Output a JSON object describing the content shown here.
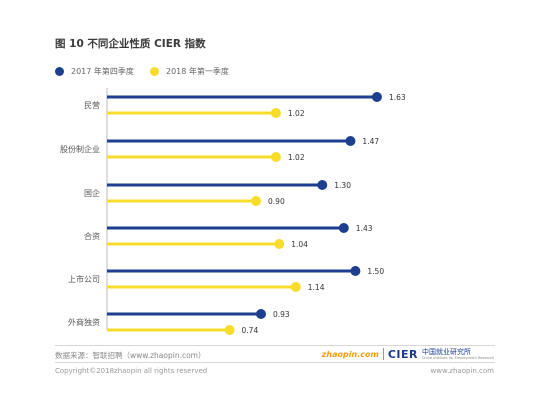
{
  "title": "图 10 不同企业性质 CIER 指数",
  "colors": {
    "series1": "#1e3f8f",
    "series2": "#f7dc2a"
  },
  "chart_data": {
    "type": "bar",
    "orientation": "horizontal",
    "style": "lollipop",
    "categories": [
      "民营",
      "股份制企业",
      "国企",
      "合资",
      "上市公司",
      "外商独资"
    ],
    "series": [
      {
        "name": "2017 年第四季度",
        "values": [
          1.63,
          1.47,
          1.3,
          1.43,
          1.5,
          0.93
        ],
        "labels": [
          "1.63",
          "1.47",
          "1.30",
          "1.43",
          "1.50",
          "0.93"
        ]
      },
      {
        "name": "2018 年第一季度",
        "values": [
          1.02,
          1.02,
          0.9,
          1.04,
          1.14,
          0.74
        ],
        "labels": [
          "1.02",
          "1.02",
          "0.90",
          "1.04",
          "1.14",
          "0.74"
        ]
      }
    ],
    "xlim": [
      0,
      1.7
    ],
    "legend_position": "top-left",
    "grid": false
  },
  "footer": {
    "source": "数据来源：智联招聘（www.zhaopin.com）",
    "copyright": "Copyright©2018zhaopin all rights reserved",
    "site": "www.zhaopin.com",
    "logo_zp_main": "zhaopin",
    "logo_zp_ext": ".com",
    "logo_cier": "CIER",
    "logo_cier_cn": "中国就业研究所",
    "logo_cier_en": "China Institute for Employment Research"
  }
}
